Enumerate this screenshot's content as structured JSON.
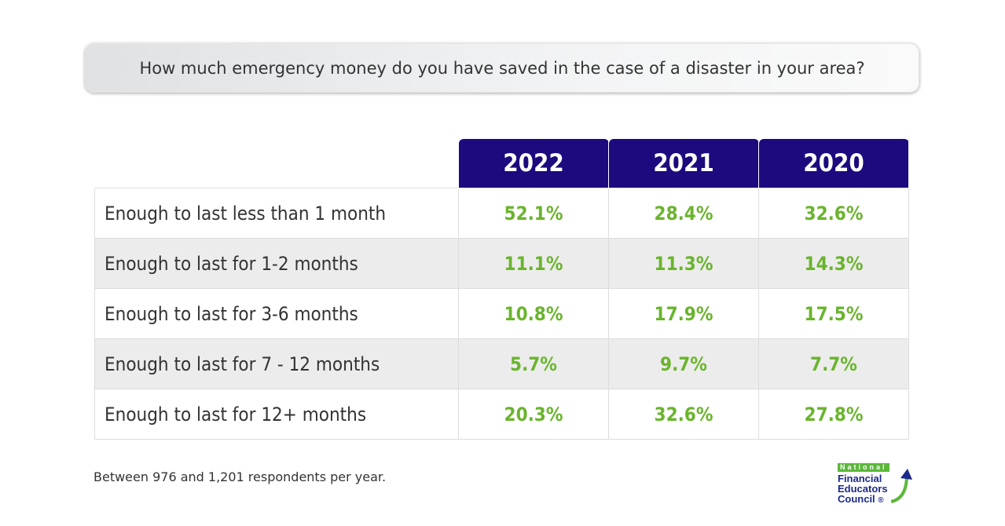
{
  "title": "How much emergency money do you have saved in the case of a disaster in your area?",
  "chart_data": {
    "type": "table",
    "columns": [
      "2022",
      "2021",
      "2020"
    ],
    "rows": [
      {
        "label": "Enough to last less than 1 month",
        "values": [
          "52.1%",
          "28.4%",
          "32.6%"
        ]
      },
      {
        "label": "Enough to last for 1-2 months",
        "values": [
          "11.1%",
          "11.3%",
          "14.3%"
        ]
      },
      {
        "label": "Enough to last for 3-6 months",
        "values": [
          "10.8%",
          "17.9%",
          "17.5%"
        ]
      },
      {
        "label": "Enough to last for 7 - 12 months",
        "values": [
          "5.7%",
          "9.7%",
          "7.7%"
        ]
      },
      {
        "label": "Enough to last for 12+ months",
        "values": [
          "20.3%",
          "32.6%",
          "27.8%"
        ]
      }
    ]
  },
  "footer": "Between 976 and 1,201 respondents per year.",
  "logo": {
    "line1": "National",
    "line2": "Financial",
    "line3": "Educators",
    "line4": "Council"
  },
  "colors": {
    "header": "#1c0a7e",
    "value": "#6ab42d",
    "alt_row": "#ececec"
  }
}
